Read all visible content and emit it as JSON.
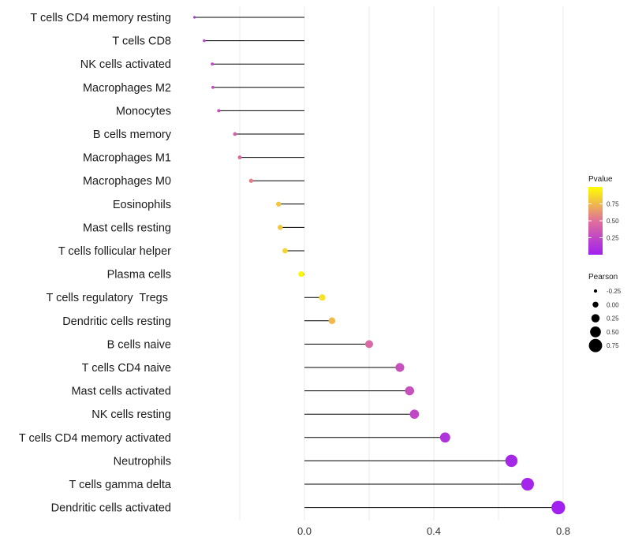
{
  "chart_data": {
    "type": "lollipop",
    "title": "",
    "xlabel": "",
    "ylabel": "",
    "xlim": [
      -0.35,
      0.8
    ],
    "x_ticks": [
      0.0,
      0.4,
      0.8
    ],
    "x_tick_labels": [
      "0.0",
      "0.4",
      "0.8"
    ],
    "grid": "vertical",
    "categories": [
      "T cells CD4 memory resting",
      "T cells CD8",
      "NK cells activated",
      "Macrophages M2",
      "Monocytes",
      "B cells memory",
      "Macrophages M1",
      "Macrophages M0",
      "Eosinophils",
      "Mast cells resting",
      "T cells follicular helper",
      "Plasma cells",
      "T cells regulatory  Tregs ",
      "Dendritic cells resting",
      "B cells naive",
      "T cells CD4 naive",
      "Mast cells activated",
      "NK cells resting",
      "T cells CD4 memory activated",
      "Neutrophils",
      "T cells gamma delta",
      "Dendritic cells activated"
    ],
    "pearson": [
      -0.34,
      -0.31,
      -0.285,
      -0.283,
      -0.265,
      -0.215,
      -0.2,
      -0.165,
      -0.08,
      -0.075,
      -0.06,
      -0.01,
      0.055,
      0.085,
      0.2,
      0.295,
      0.325,
      0.34,
      0.435,
      0.64,
      0.69,
      0.785
    ],
    "pvalue": [
      0.1,
      0.2,
      0.25,
      0.27,
      0.3,
      0.4,
      0.45,
      0.55,
      0.8,
      0.8,
      0.85,
      0.97,
      0.9,
      0.75,
      0.45,
      0.3,
      0.3,
      0.25,
      0.12,
      0.05,
      0.03,
      0.01
    ],
    "legends": {
      "color": {
        "title": "Pvalue",
        "ticks": [
          0.25,
          0.5,
          0.75
        ],
        "tick_labels": [
          "0.25",
          "0.50",
          "0.75"
        ],
        "range": [
          0,
          1
        ],
        "low_color": "#a020f0",
        "mid_color": "#e0709a",
        "high_color": "#ffff00"
      },
      "size": {
        "title": "Pearson",
        "values": [
          -0.25,
          0.0,
          0.25,
          0.5,
          0.75
        ],
        "labels": [
          "-0.25",
          "0.00",
          "0.25",
          "0.50",
          "0.75"
        ]
      }
    }
  }
}
